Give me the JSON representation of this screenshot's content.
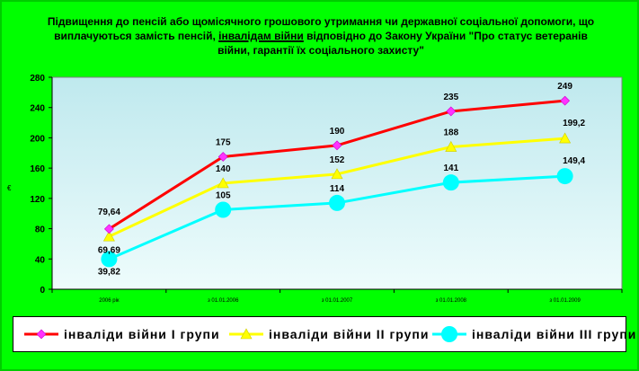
{
  "title": {
    "part1": "Підвищення до пенсій або щомісячного грошового утримання чи державної соціальної допомоги, що виплачуються замість пенсій, ",
    "underlined": "інвалідам війни",
    "part2": " відповідно до Закону України \"Про статус ветеранів війни, гарантії їх соціального захисту\""
  },
  "colors": {
    "background": "#00ff00",
    "plot_area": "#d9f5f5",
    "series1": "#ff0000",
    "series2": "#ffff00",
    "series3": "#00ffff",
    "marker1": "#ff33ff"
  },
  "chart_data": {
    "type": "line",
    "categories": [
      "2006 рік",
      "з 01.01.2006",
      "з 01.01.2007",
      "з 01.01.2008",
      "з 01.01.2009"
    ],
    "ylabel": "€",
    "ylim": [
      0,
      280
    ],
    "yticks": [
      0,
      40,
      80,
      120,
      160,
      200,
      240,
      280
    ],
    "grid": false,
    "legend_position": "bottom",
    "series": [
      {
        "name": "інваліди війни І групи",
        "color": "#ff0000",
        "marker": "diamond",
        "values": [
          79.64,
          175,
          190,
          235,
          249
        ],
        "labels": [
          "79,64",
          "175",
          "190",
          "235",
          "249"
        ]
      },
      {
        "name": "інваліди війни ІІ групи",
        "color": "#ffff00",
        "marker": "triangle",
        "values": [
          69.69,
          140,
          152,
          188,
          199.2
        ],
        "labels": [
          "69,69",
          "140",
          "152",
          "188",
          "199,2"
        ]
      },
      {
        "name": "інваліди війни ІІІ групи",
        "color": "#00ffff",
        "marker": "circle",
        "values": [
          39.82,
          105,
          114,
          141,
          149.4
        ],
        "labels": [
          "39,82",
          "105",
          "114",
          "141",
          "149,4"
        ]
      }
    ]
  }
}
